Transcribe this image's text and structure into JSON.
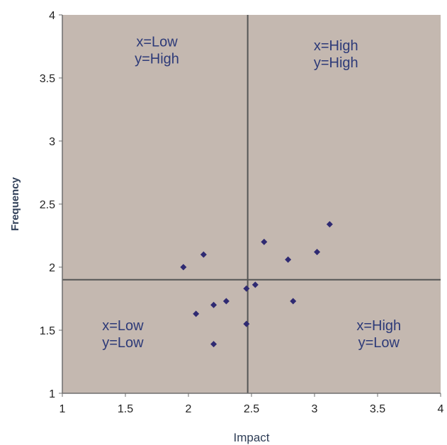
{
  "chart_data": {
    "type": "scatter",
    "xlabel": "Impact",
    "ylabel": "Frequency",
    "xlim": [
      1,
      4
    ],
    "ylim": [
      1,
      4
    ],
    "xticks": [
      "1",
      "1.5",
      "2",
      "2.5",
      "3",
      "3.5",
      "4"
    ],
    "yticks": [
      "1",
      "1.5",
      "2",
      "2.5",
      "3",
      "3.5",
      "4"
    ],
    "grid": false,
    "legend": "none",
    "divider_x": 2.47,
    "divider_y": 1.9,
    "colors": {
      "plot_background": "#c4b8b0",
      "marker": "#2f2a72",
      "divider": "#555555",
      "label": "#2d3a78"
    },
    "quadrant_labels": [
      {
        "id": "top-left",
        "lines": [
          "x=Low",
          "y=High"
        ],
        "at": [
          1.75,
          3.75
        ]
      },
      {
        "id": "top-right",
        "lines": [
          "x=High",
          "y=High"
        ],
        "at": [
          3.17,
          3.72
        ]
      },
      {
        "id": "bottom-left",
        "lines": [
          "x=Low",
          "y=Low"
        ],
        "at": [
          1.48,
          1.5
        ]
      },
      {
        "id": "bottom-right",
        "lines": [
          "x=High",
          "y=Low"
        ],
        "at": [
          3.51,
          1.5
        ]
      }
    ],
    "points": [
      {
        "x": 1.96,
        "y": 2.0
      },
      {
        "x": 2.12,
        "y": 2.1
      },
      {
        "x": 2.06,
        "y": 1.63
      },
      {
        "x": 2.2,
        "y": 1.7
      },
      {
        "x": 2.3,
        "y": 1.73
      },
      {
        "x": 2.2,
        "y": 1.39
      },
      {
        "x": 2.46,
        "y": 1.55
      },
      {
        "x": 2.46,
        "y": 1.83
      },
      {
        "x": 2.53,
        "y": 1.86
      },
      {
        "x": 2.6,
        "y": 2.2
      },
      {
        "x": 2.79,
        "y": 2.06
      },
      {
        "x": 2.83,
        "y": 1.73
      },
      {
        "x": 3.02,
        "y": 2.12
      },
      {
        "x": 3.12,
        "y": 2.34
      }
    ]
  }
}
